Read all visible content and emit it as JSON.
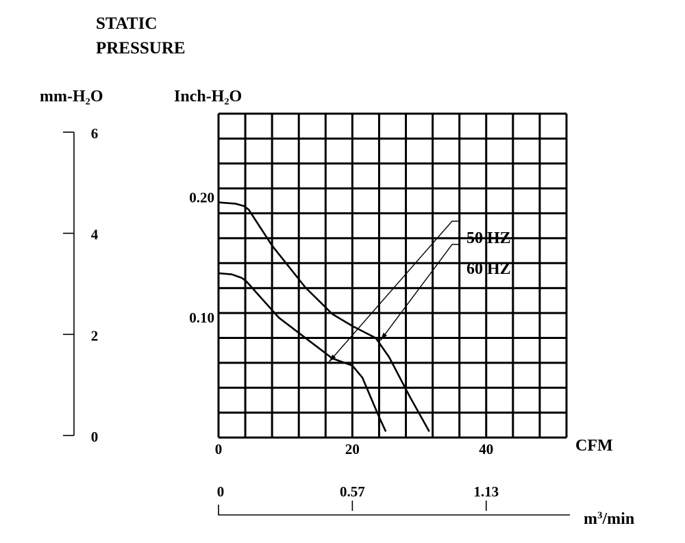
{
  "chart_data": {
    "type": "line",
    "title_line1": "STATIC",
    "title_line2": "PRESSURE",
    "left_unit_label": "mm-H₂O",
    "inner_unit_label": "Inch-H₂O",
    "xlabel": "CFM",
    "x2label_base": "m",
    "x2label_sup": "3",
    "x2label_rest": "/min",
    "xlim": [
      0,
      52
    ],
    "ylim": [
      0,
      0.27
    ],
    "x_ticks": [
      {
        "value": 0,
        "label": "0"
      },
      {
        "value": 20,
        "label": "20"
      },
      {
        "value": 40,
        "label": "40"
      }
    ],
    "y_ticks": [
      {
        "value": 0.1,
        "label": "0.10"
      },
      {
        "value": 0.2,
        "label": "0.20"
      }
    ],
    "mm_ticks": [
      {
        "value": 0,
        "label": "0"
      },
      {
        "value": 2,
        "label": "2"
      },
      {
        "value": 4,
        "label": "4"
      },
      {
        "value": 6,
        "label": "6"
      }
    ],
    "m3_ticks": [
      {
        "value": 0,
        "cfm": 0,
        "label": "0"
      },
      {
        "value": 0.57,
        "cfm": 20,
        "label": "0.57"
      },
      {
        "value": 1.13,
        "cfm": 40,
        "label": "1.13"
      }
    ],
    "grid": true,
    "series": [
      {
        "name": "50 HZ",
        "x": [
          0,
          2,
          3.5,
          4.2,
          9,
          17,
          20,
          21.5,
          24,
          25
        ],
        "y": [
          0.137,
          0.136,
          0.133,
          0.13,
          0.1,
          0.066,
          0.06,
          0.05,
          0.017,
          0.005
        ]
      },
      {
        "name": "60 HZ",
        "x": [
          0,
          2.5,
          3.8,
          4.5,
          8,
          13,
          17,
          20,
          23.5,
          25.5,
          28.5,
          31.5
        ],
        "y": [
          0.196,
          0.195,
          0.193,
          0.19,
          0.16,
          0.125,
          0.103,
          0.093,
          0.083,
          0.067,
          0.035,
          0.005
        ]
      }
    ],
    "callouts": [
      {
        "series": "50 HZ",
        "point": [
          16.5,
          0.063
        ]
      },
      {
        "series": "60 HZ",
        "point": [
          24.2,
          0.081
        ]
      }
    ]
  }
}
